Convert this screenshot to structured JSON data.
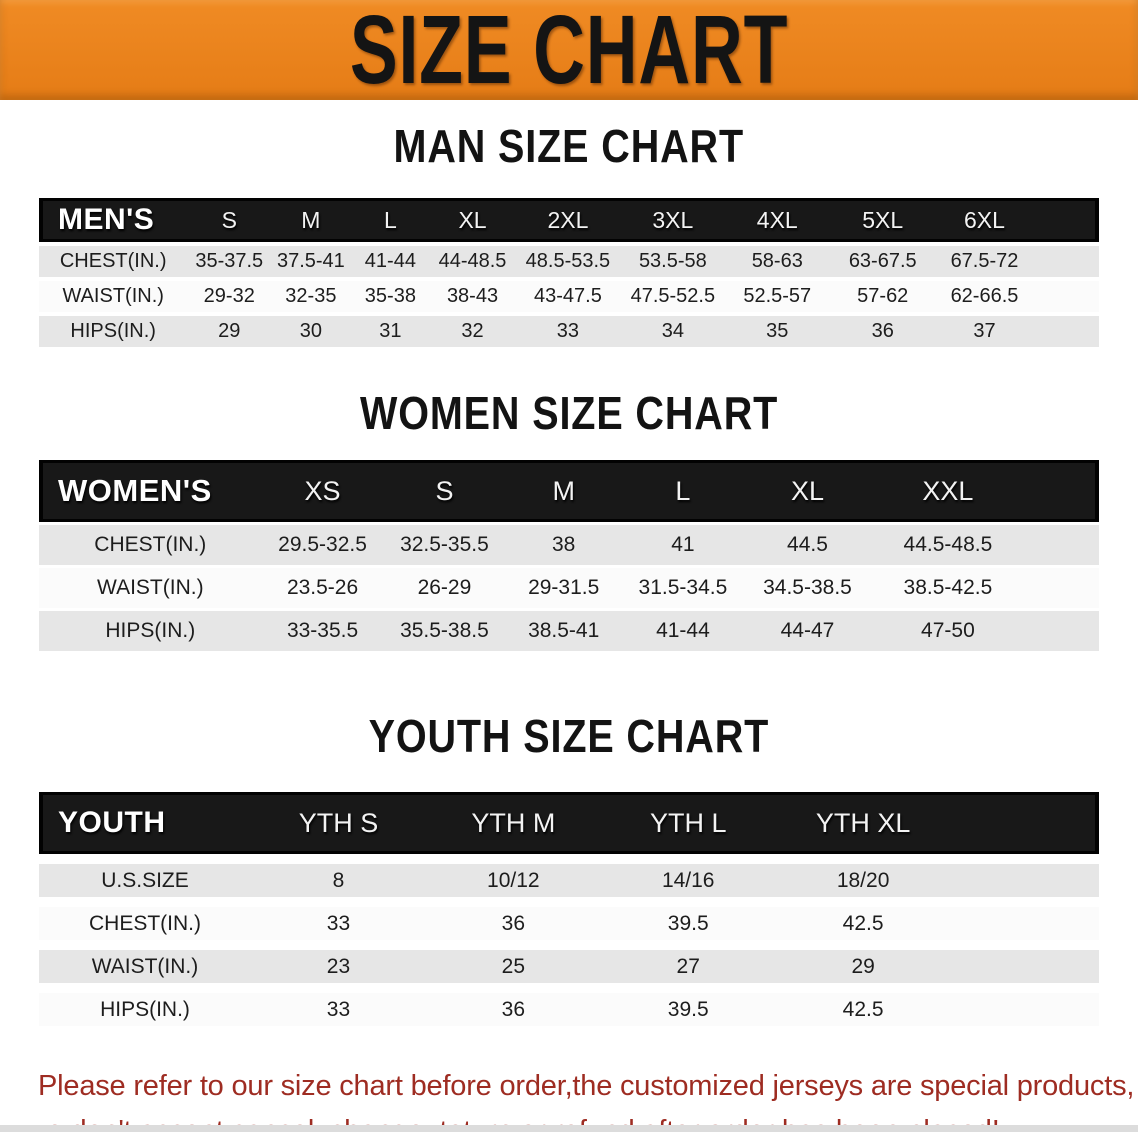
{
  "banner": {
    "title": "SIZE CHART"
  },
  "colors": {
    "banner_orange": "#e8811c",
    "header_black": "#181818",
    "row_gray": "#e6e6e6",
    "row_white": "#fbfbfb",
    "notice_red": "#9e2c22"
  },
  "sections": [
    {
      "title": "MAN SIZE CHART",
      "header_label": "MEN'S",
      "columns": [
        "S",
        "M",
        "L",
        "XL",
        "2XL",
        "3XL",
        "4XL",
        "5XL",
        "6XL"
      ],
      "rows": [
        {
          "label": "CHEST(IN.)",
          "values": [
            "35-37.5",
            "37.5-41",
            "41-44",
            "44-48.5",
            "48.5-53.5",
            "53.5-58",
            "58-63",
            "63-67.5",
            "67.5-72"
          ]
        },
        {
          "label": "WAIST(IN.)",
          "values": [
            "29-32",
            "32-35",
            "35-38",
            "38-43",
            "43-47.5",
            "47.5-52.5",
            "52.5-57",
            "57-62",
            "62-66.5"
          ]
        },
        {
          "label": "HIPS(IN.)",
          "values": [
            "29",
            "30",
            "31",
            "32",
            "33",
            "34",
            "35",
            "36",
            "37"
          ]
        }
      ]
    },
    {
      "title": "WOMEN SIZE CHART",
      "header_label": "WOMEN'S",
      "columns": [
        "XS",
        "S",
        "M",
        "L",
        "XL",
        "XXL"
      ],
      "rows": [
        {
          "label": "CHEST(IN.)",
          "values": [
            "29.5-32.5",
            "32.5-35.5",
            "38",
            "41",
            "44.5",
            "44.5-48.5"
          ]
        },
        {
          "label": "WAIST(IN.)",
          "values": [
            "23.5-26",
            "26-29",
            "29-31.5",
            "31.5-34.5",
            "34.5-38.5",
            "38.5-42.5"
          ]
        },
        {
          "label": "HIPS(IN.)",
          "values": [
            "33-35.5",
            "35.5-38.5",
            "38.5-41",
            "41-44",
            "44-47",
            "47-50"
          ]
        }
      ]
    },
    {
      "title": "YOUTH SIZE CHART",
      "header_label": "YOUTH",
      "columns": [
        "YTH S",
        "YTH M",
        "YTH L",
        "YTH XL"
      ],
      "rows": [
        {
          "label": "U.S.SIZE",
          "values": [
            "8",
            "10/12",
            "14/16",
            "18/20"
          ]
        },
        {
          "label": "CHEST(IN.)",
          "values": [
            "33",
            "36",
            "39.5",
            "42.5"
          ]
        },
        {
          "label": "WAIST(IN.)",
          "values": [
            "23",
            "25",
            "27",
            "29"
          ]
        },
        {
          "label": "HIPS(IN.)",
          "values": [
            "33",
            "36",
            "39.5",
            "42.5"
          ]
        }
      ]
    }
  ],
  "footer": {
    "lines": [
      "Please refer to our size chart before order,the customized jerseys are special products,",
      "we don't accept cancel, change, teturn or refund after order has been placed!"
    ]
  }
}
